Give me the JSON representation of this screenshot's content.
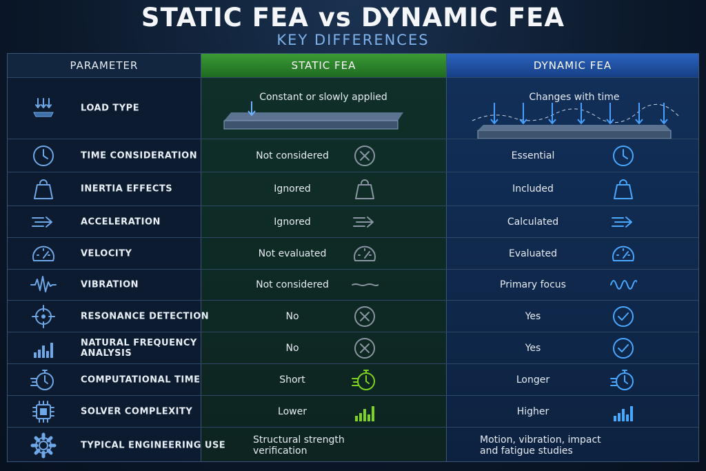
{
  "header": {
    "title": "STATIC FEA vs DYNAMIC FEA",
    "subtitle": "KEY DIFFERENCES"
  },
  "table": {
    "columns": [
      "PARAMETER",
      "STATIC FEA",
      "DYNAMIC FEA"
    ],
    "rows": [
      [
        "LOAD TYPE",
        "Constant or slowly applied",
        "Changes with time"
      ],
      [
        "TIME CONSIDERATION",
        "Not considered",
        "Essential"
      ],
      [
        "INERTIA EFFECTS",
        "Ignored",
        "Included"
      ],
      [
        "ACCELERATION",
        "Ignored",
        "Calculated"
      ],
      [
        "VELOCITY",
        "Not evaluated",
        "Evaluated"
      ],
      [
        "VIBRATION",
        "Not considered",
        "Primary focus"
      ],
      [
        "RESONANCE DETECTION",
        "No",
        "Yes"
      ],
      [
        "NATURAL FREQUENCY ANALYSIS",
        "No",
        "Yes"
      ],
      [
        "COMPUTATIONAL TIME",
        "Short",
        "Longer"
      ],
      [
        "SOLVER COMPLEXITY",
        "Lower",
        "Higher"
      ],
      [
        "TYPICAL ENGINEERING USE",
        "Structural strength verification",
        "Motion, vibration, impact and fatigue studies"
      ]
    ]
  }
}
